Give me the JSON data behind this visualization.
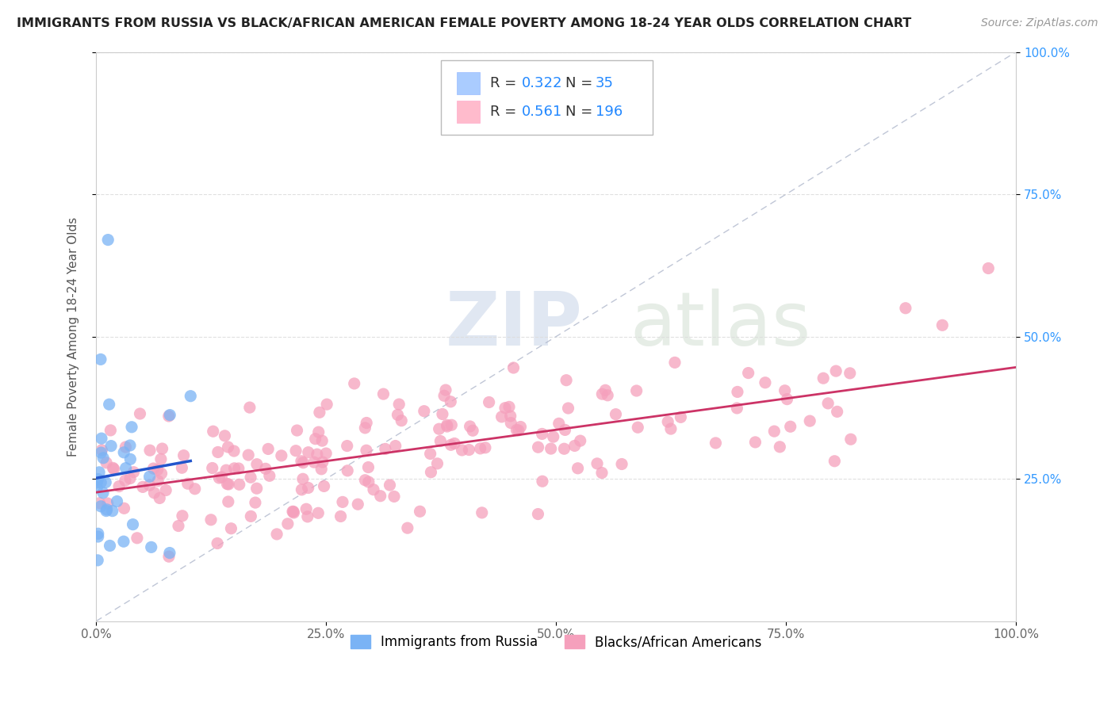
{
  "title": "IMMIGRANTS FROM RUSSIA VS BLACK/AFRICAN AMERICAN FEMALE POVERTY AMONG 18-24 YEAR OLDS CORRELATION CHART",
  "source": "Source: ZipAtlas.com",
  "ylabel": "Female Poverty Among 18-24 Year Olds",
  "watermark_zip": "ZIP",
  "watermark_atlas": "atlas",
  "series1_name": "Immigrants from Russia",
  "series1_color": "#7ab3f5",
  "series1_edge": "none",
  "series2_name": "Blacks/African Americans",
  "series2_color": "#f5a0bc",
  "series2_edge": "none",
  "trend1_color": "#2255cc",
  "trend2_color": "#cc3366",
  "diag_color": "#b0b8cc",
  "bg_color": "#ffffff",
  "grid_color": "#dddddd",
  "xlim": [
    0.0,
    1.0
  ],
  "ylim": [
    0.0,
    1.0
  ],
  "xticks": [
    0.0,
    0.25,
    0.5,
    0.75,
    1.0
  ],
  "xtick_labels": [
    "0.0%",
    "25.0%",
    "50.0%",
    "75.0%",
    "100.0%"
  ],
  "yticks_right": [
    0.25,
    0.5,
    0.75,
    1.0
  ],
  "ytick_labels_right": [
    "25.0%",
    "50.0%",
    "75.0%",
    "100.0%"
  ],
  "legend_R1": "0.322",
  "legend_N1": "35",
  "legend_R2": "0.561",
  "legend_N2": "196",
  "legend_color_vals": "#2288ff",
  "legend_color_text": "#333333"
}
